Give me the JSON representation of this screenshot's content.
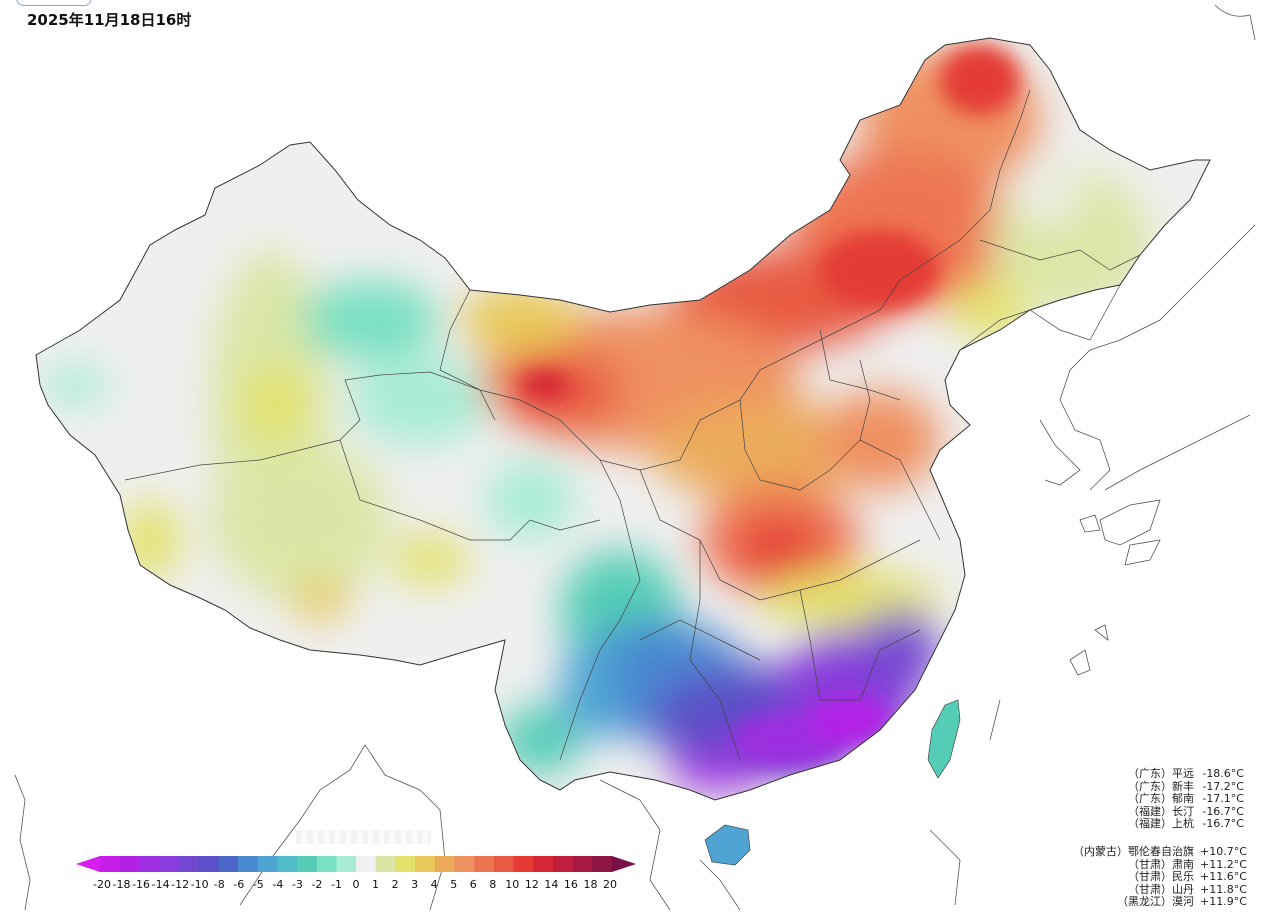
{
  "header": {
    "timestamp": "2025年11月18日16时"
  },
  "legend": {
    "ticks": [
      "-20",
      "-18",
      "-16",
      "-14",
      "-12",
      "-10",
      "-8",
      "-6",
      "-5",
      "-4",
      "-3",
      "-2",
      "-1",
      "0",
      "1",
      "2",
      "3",
      "4",
      "5",
      "6",
      "8",
      "10",
      "12",
      "14",
      "16",
      "18",
      "20"
    ],
    "colors": [
      "#c81fe8",
      "#b222e6",
      "#9c2fe0",
      "#8a3ddb",
      "#7447d1",
      "#5c4fc8",
      "#4d67c9",
      "#4a88d2",
      "#4fa4d4",
      "#4fbcc8",
      "#55cdb6",
      "#79e0c2",
      "#a8ecd6",
      "#f1f1f1",
      "#dbe6a6",
      "#e3e26c",
      "#e8c95a",
      "#ebab5b",
      "#ef9060",
      "#ee7552",
      "#e85a43",
      "#e43b35",
      "#d62836",
      "#c21f3e",
      "#a61a45",
      "#8e1446"
    ]
  },
  "stations_low": [
    {
      "prov": "（广东）",
      "name": "平远",
      "value": "-18.6°C"
    },
    {
      "prov": "（广东）",
      "name": "新丰",
      "value": "-17.2°C"
    },
    {
      "prov": "（广东）",
      "name": "郁南",
      "value": "-17.1°C"
    },
    {
      "prov": "（福建）",
      "name": "长汀",
      "value": "-16.7°C"
    },
    {
      "prov": "（福建）",
      "name": "上杭",
      "value": "-16.7°C"
    }
  ],
  "stations_high": [
    {
      "prov": "（内蒙古）",
      "name": "鄂伦春自治旗",
      "value": "+10.7°C"
    },
    {
      "prov": "（甘肃）",
      "name": "肃南",
      "value": "+11.2°C"
    },
    {
      "prov": "（甘肃）",
      "name": "民乐",
      "value": "+11.6°C"
    },
    {
      "prov": "（甘肃）",
      "name": "山丹",
      "value": "+11.8°C"
    },
    {
      "prov": "（黑龙江）",
      "name": "漠河",
      "value": "+11.9°C"
    }
  ]
}
